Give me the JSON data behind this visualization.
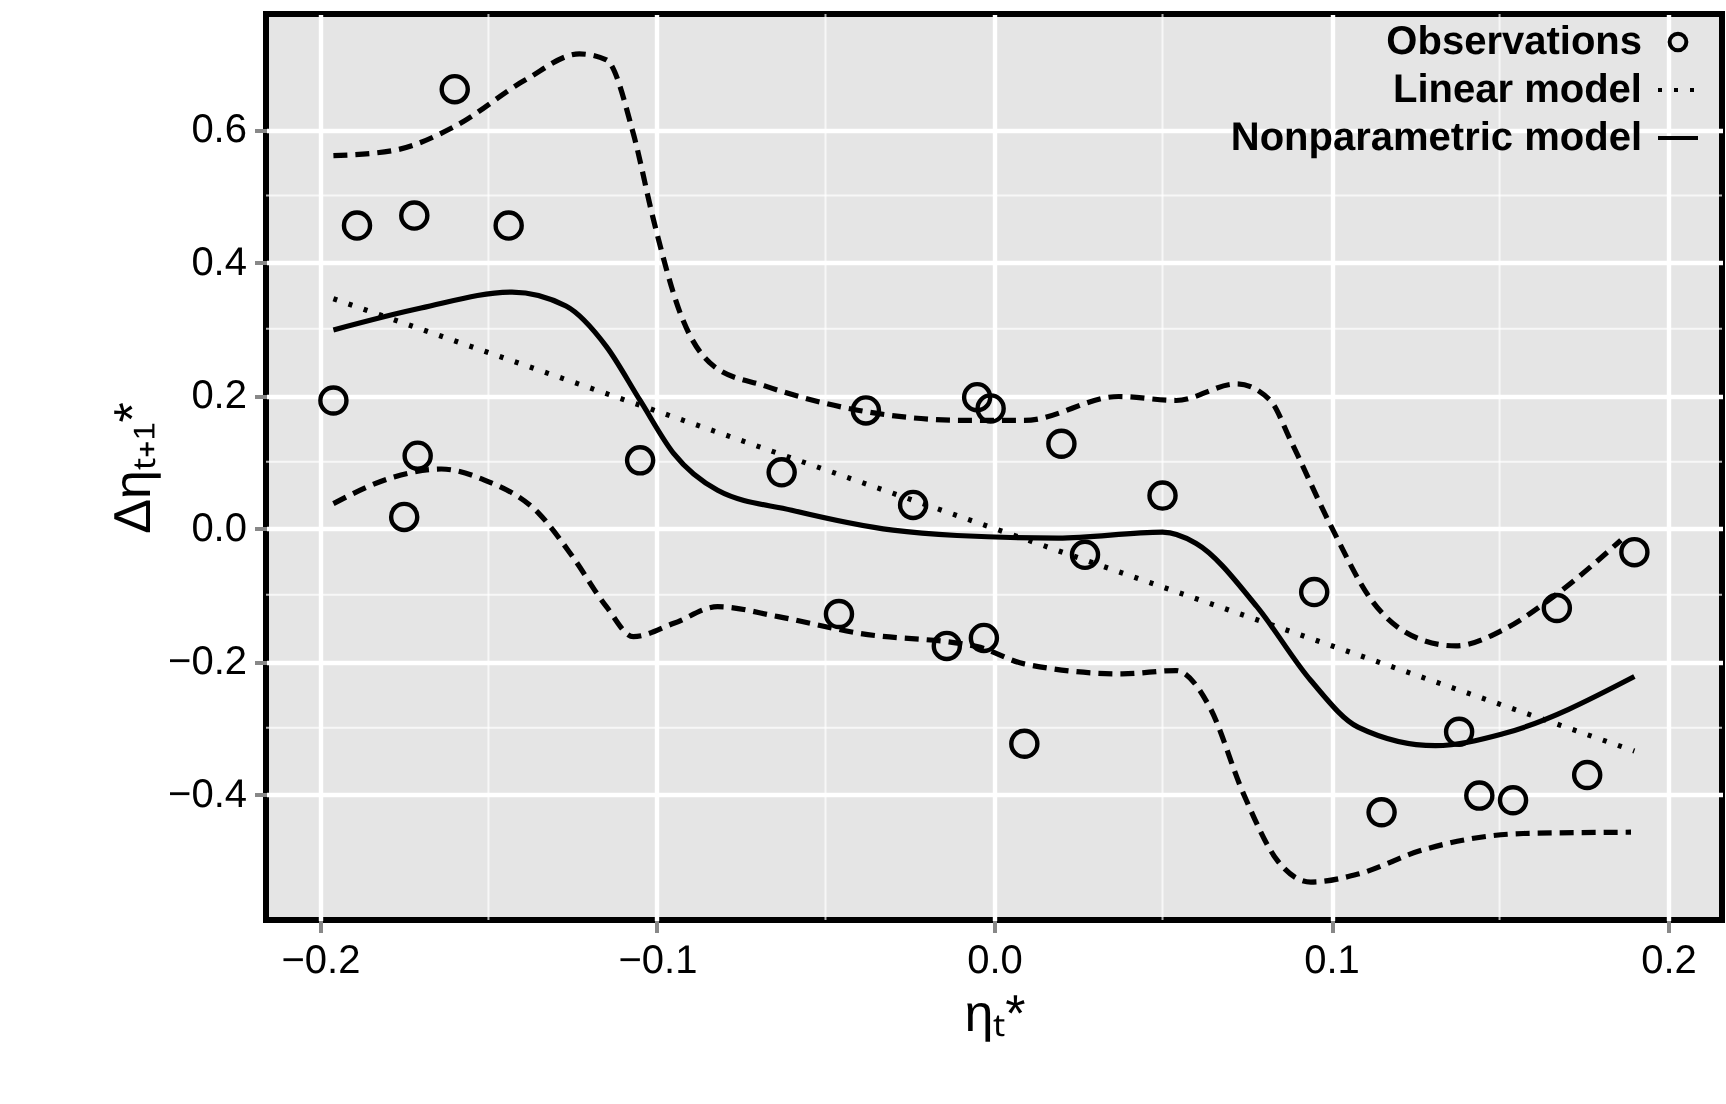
{
  "chart_data": {
    "type": "scatter",
    "xlabel": "ηₜ*",
    "ylabel": "Δηₜ₊₁*",
    "xlim": [
      -0.216,
      0.216
    ],
    "ylim": [
      -0.589,
      0.773
    ],
    "xticks": [
      {
        "value": -0.2,
        "label": "−0.2"
      },
      {
        "value": -0.1,
        "label": "−0.1"
      },
      {
        "value": 0.0,
        "label": "0.0"
      },
      0.1,
      0.2
    ],
    "yticks": [
      {
        "value": -0.4,
        "label": "−0.4"
      },
      {
        "value": -0.2,
        "label": "−0.2"
      },
      {
        "value": 0.0,
        "label": "0.0"
      },
      0.2,
      0.4,
      0.6
    ],
    "grid": true,
    "legend": "top right",
    "series": [
      {
        "name": "Observations",
        "marker": "circle",
        "color": "#000000",
        "x": [
          -0.196,
          -0.189,
          -0.172,
          -0.16,
          -0.144,
          -0.171,
          -0.175,
          -0.105,
          -0.063,
          -0.038,
          -0.024,
          -0.005,
          -0.001,
          -0.046,
          -0.014,
          -0.003,
          0.02,
          0.05,
          0.027,
          0.009,
          0.095,
          0.19,
          0.167,
          0.138,
          0.176,
          0.144,
          0.154,
          0.115
        ],
        "values": [
          0.192,
          0.455,
          0.47,
          0.66,
          0.455,
          0.109,
          0.017,
          0.102,
          0.084,
          0.177,
          0.035,
          0.197,
          0.18,
          -0.129,
          -0.177,
          -0.165,
          0.127,
          0.049,
          -0.04,
          -0.324,
          -0.096,
          -0.036,
          -0.12,
          -0.306,
          -0.371,
          -0.402,
          -0.409,
          -0.427
        ]
      },
      {
        "name": "Linear model",
        "type": "line",
        "line_style": "dotted",
        "color": "#000000",
        "x": [
          -0.196,
          0.19
        ],
        "values": [
          0.345,
          -0.335
        ]
      },
      {
        "name": "Nonparametric model",
        "type": "line",
        "line_style": "solid",
        "color": "#000000",
        "x": [
          -0.196,
          -0.17,
          -0.143,
          -0.127,
          -0.115,
          -0.105,
          -0.095,
          -0.082,
          -0.06,
          -0.03,
          -0.011,
          0.019,
          0.05,
          0.06,
          0.078,
          0.094,
          0.108,
          0.131,
          0.151,
          0.19
        ],
        "values": [
          0.298,
          0.331,
          0.355,
          0.334,
          0.273,
          0.192,
          0.112,
          0.057,
          0.027,
          -0.003,
          -0.011,
          -0.015,
          -0.006,
          -0.023,
          -0.118,
          -0.229,
          -0.299,
          -0.327,
          -0.309,
          -0.223
        ]
      },
      {
        "type": "line",
        "line_style": "dashed",
        "color": "#000000",
        "x": [
          -0.196,
          -0.178,
          -0.16,
          -0.139,
          -0.123,
          -0.115,
          -0.107,
          -0.101,
          -0.093,
          -0.083,
          -0.068,
          -0.04,
          -0.008,
          0.009,
          0.037,
          0.054,
          0.072,
          0.082,
          0.088,
          0.1,
          0.112,
          0.127,
          0.137,
          0.151,
          0.167,
          0.186
        ],
        "values": [
          0.56,
          0.568,
          0.604,
          0.674,
          0.713,
          0.704,
          0.593,
          0.463,
          0.322,
          0.243,
          0.214,
          0.177,
          0.162,
          0.162,
          0.198,
          0.192,
          0.217,
          0.192,
          0.132,
          0.003,
          -0.108,
          -0.168,
          -0.177,
          -0.153,
          -0.099,
          -0.018
        ]
      },
      {
        "type": "line",
        "line_style": "dashed",
        "color": "#000000",
        "x": [
          -0.196,
          -0.178,
          -0.164,
          -0.151,
          -0.135,
          -0.125,
          -0.115,
          -0.107,
          -0.095,
          -0.082,
          -0.064,
          -0.04,
          -0.005,
          0.009,
          0.038,
          0.054,
          0.064,
          0.074,
          0.084,
          0.094,
          0.108,
          0.127,
          0.157,
          0.189
        ],
        "values": [
          0.037,
          0.077,
          0.089,
          0.072,
          0.022,
          -0.043,
          -0.118,
          -0.163,
          -0.143,
          -0.118,
          -0.133,
          -0.158,
          -0.178,
          -0.204,
          -0.219,
          -0.214,
          -0.269,
          -0.399,
          -0.499,
          -0.532,
          -0.52,
          -0.484,
          -0.459,
          -0.457
        ]
      }
    ]
  }
}
